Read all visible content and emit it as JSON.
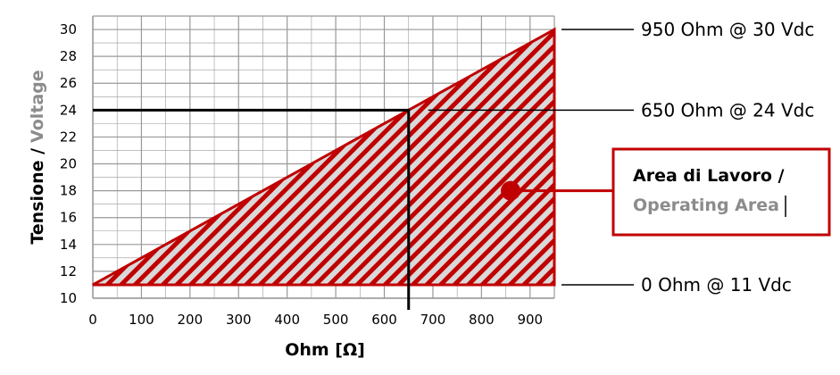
{
  "chart_data": {
    "type": "area",
    "xlabel": "Ohm [Ω]",
    "ylabel_part1": "Tensione /",
    "ylabel_part2": "Voltage",
    "xlim": [
      0,
      950
    ],
    "ylim": [
      10,
      31
    ],
    "x_ticks": [
      0,
      100,
      200,
      300,
      400,
      500,
      600,
      700,
      800,
      900
    ],
    "y_ticks": [
      10,
      12,
      14,
      16,
      18,
      20,
      22,
      24,
      26,
      28,
      30
    ],
    "grid": true,
    "operating_area": {
      "vertices": [
        [
          0,
          11
        ],
        [
          950,
          30
        ],
        [
          950,
          11
        ]
      ],
      "fill": "hatched",
      "border_color": "#c00000"
    },
    "reference_point": {
      "x": 650,
      "y": 24
    },
    "annotations": [
      {
        "label": "950 Ohm @ 30 Vdc",
        "x": 950,
        "y": 30
      },
      {
        "label": "650 Ohm @ 24 Vdc",
        "x": 650,
        "y": 24
      },
      {
        "label": "0 Ohm @ 11 Vdc",
        "x": 0,
        "y": 11
      }
    ],
    "legend": {
      "label_line1": "Area di Lavoro /",
      "label_line2": "Operating Area",
      "marker_x": 860,
      "marker_y": 18
    }
  },
  "colors": {
    "accent": "#c00000",
    "grid": "#999999",
    "secondary_text": "#8c8c8c",
    "hatch_background": "#d9d9d9"
  }
}
